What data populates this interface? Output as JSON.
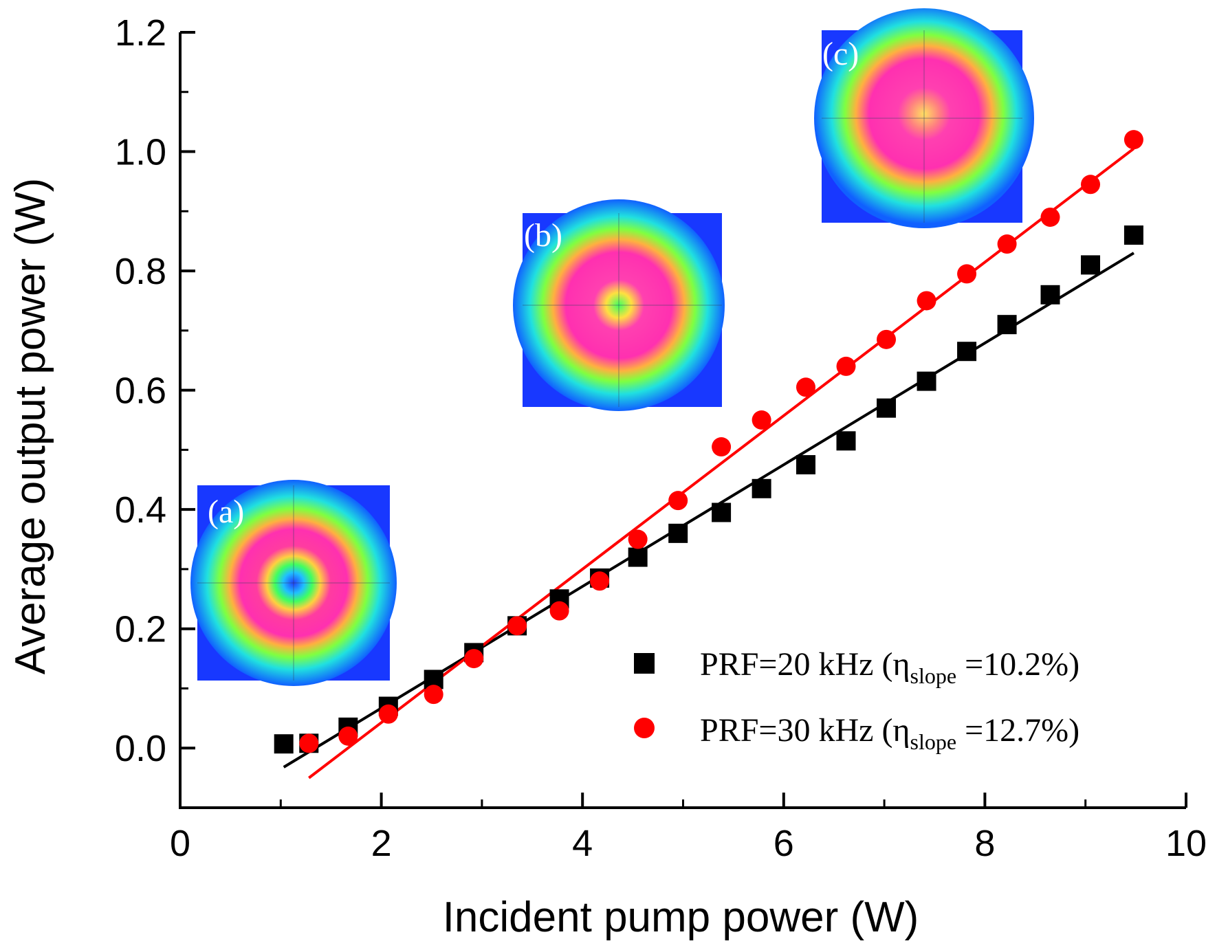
{
  "chart_data": {
    "type": "scatter",
    "xlabel": "Incident pump power (W)",
    "ylabel": "Average output power (W)",
    "xlim": [
      0,
      10
    ],
    "ylim": [
      -0.1,
      1.2
    ],
    "xticks": [
      0,
      2,
      4,
      6,
      8,
      10
    ],
    "xtick_labels": [
      "0",
      "2",
      "4",
      "6",
      "8",
      "10"
    ],
    "yticks": [
      0.0,
      0.2,
      0.4,
      0.6,
      0.8,
      1.0,
      1.2
    ],
    "ytick_labels": [
      "0.0",
      "0.2",
      "0.4",
      "0.6",
      "0.8",
      "1.0",
      "1.2"
    ],
    "grid": false,
    "legend_position": "bottom-right",
    "series": [
      {
        "name": "PRF=20 kHz",
        "legend_prefix": "PRF=20 kHz (η",
        "legend_sub": "slope",
        "legend_suffix": " =10.2%)",
        "marker": "square",
        "color": "#000000",
        "x": [
          1.03,
          1.28,
          1.67,
          2.07,
          2.52,
          2.92,
          3.35,
          3.77,
          4.17,
          4.55,
          4.95,
          5.38,
          5.78,
          6.22,
          6.62,
          7.02,
          7.42,
          7.82,
          8.22,
          8.65,
          9.05,
          9.48
        ],
        "y": [
          0.007,
          0.008,
          0.035,
          0.07,
          0.115,
          0.16,
          0.205,
          0.25,
          0.285,
          0.32,
          0.36,
          0.395,
          0.435,
          0.475,
          0.515,
          0.57,
          0.615,
          0.665,
          0.71,
          0.76,
          0.81,
          0.86
        ],
        "fit": {
          "x": [
            1.03,
            9.48
          ],
          "y": [
            -0.032,
            0.83
          ]
        }
      },
      {
        "name": "PRF=30 kHz",
        "legend_prefix": "PRF=30 kHz (η",
        "legend_sub": "slope",
        "legend_suffix": " =12.7%)",
        "marker": "circle",
        "color": "#ff0000",
        "x": [
          1.28,
          1.67,
          2.07,
          2.52,
          2.92,
          3.35,
          3.77,
          4.17,
          4.55,
          4.95,
          5.38,
          5.78,
          6.22,
          6.62,
          7.02,
          7.42,
          7.82,
          8.22,
          8.65,
          9.05,
          9.48
        ],
        "y": [
          0.008,
          0.02,
          0.057,
          0.09,
          0.15,
          0.205,
          0.23,
          0.28,
          0.35,
          0.415,
          0.505,
          0.55,
          0.605,
          0.64,
          0.685,
          0.75,
          0.795,
          0.845,
          0.89,
          0.945,
          1.02
        ],
        "fit": {
          "x": [
            1.28,
            9.48
          ],
          "y": [
            -0.05,
            1.005
          ]
        }
      }
    ],
    "insets": [
      {
        "label": "(a)",
        "profile": "donut-small-core"
      },
      {
        "label": "(b)",
        "profile": "donut-medium-core"
      },
      {
        "label": "(c)",
        "profile": "donut-large-core"
      }
    ]
  }
}
